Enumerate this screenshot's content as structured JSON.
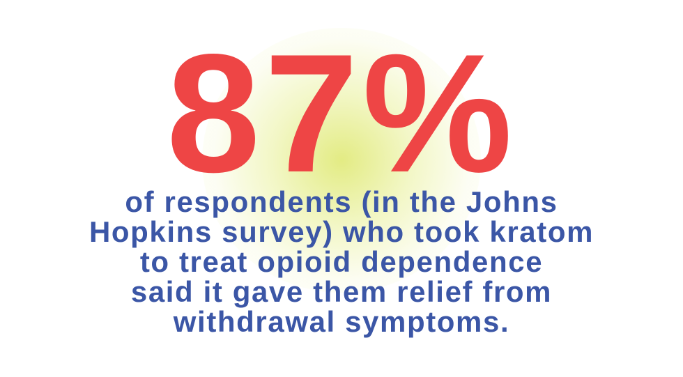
{
  "stat": {
    "value": "87%",
    "color": "#ee4545"
  },
  "description": {
    "color": "#3b56a6",
    "lines": [
      "of respondents (in the Johns",
      "Hopkins survey) who took kratom",
      "to treat opioid dependence",
      "said it gave them relief from",
      "withdrawal symptoms."
    ]
  },
  "background": {
    "glow_color": "#e2ea7a"
  }
}
